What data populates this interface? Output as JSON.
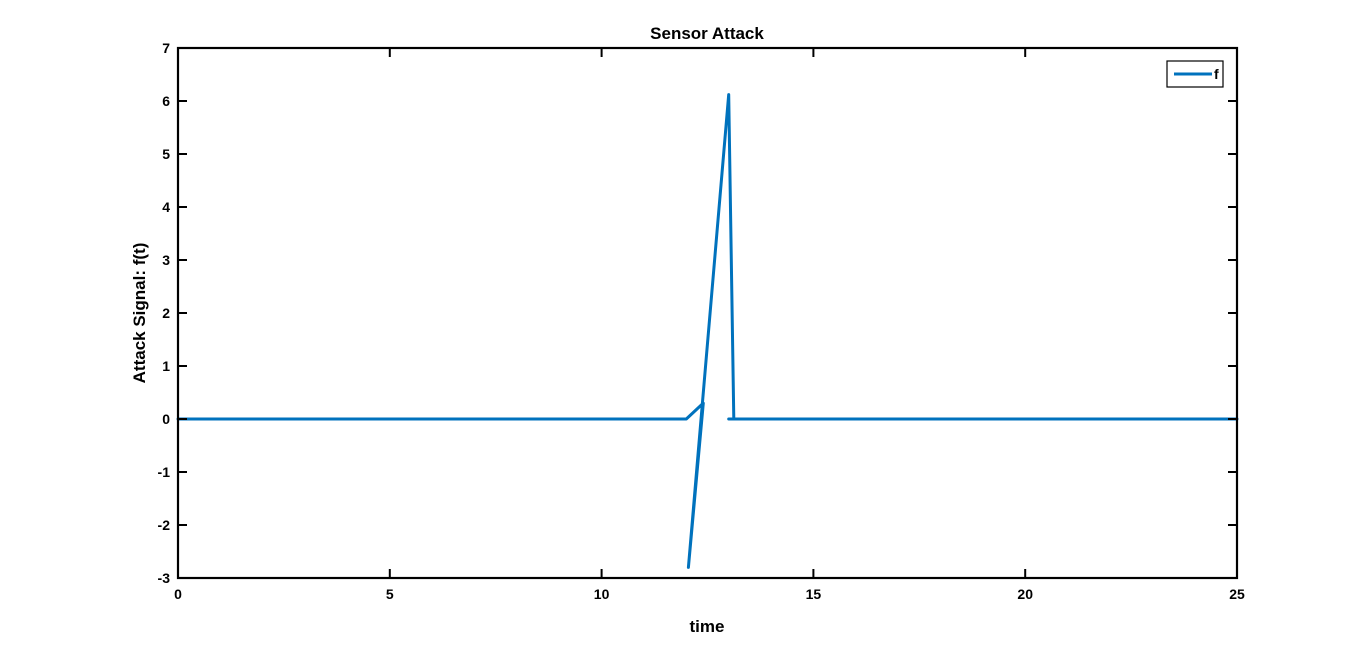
{
  "chart_data": {
    "type": "line",
    "title": "Sensor Attack",
    "xlabel": "time",
    "ylabel": "Attack Signal: f(t)",
    "xlim": [
      0,
      25
    ],
    "ylim": [
      -3,
      7
    ],
    "xticks": [
      0,
      5,
      10,
      15,
      20,
      25
    ],
    "yticks": [
      -3,
      -2,
      -1,
      0,
      1,
      2,
      3,
      4,
      5,
      6,
      7
    ],
    "grid": false,
    "legend_position": "top-right",
    "series": [
      {
        "name": "f",
        "color": "#0072BD",
        "x": [
          0,
          12.0,
          12.4,
          12.05,
          13.0,
          13.12,
          13.12,
          13.0,
          25
        ],
        "y": [
          0,
          0,
          0.3,
          -2.8,
          6.12,
          0,
          0,
          0,
          0
        ]
      }
    ]
  }
}
